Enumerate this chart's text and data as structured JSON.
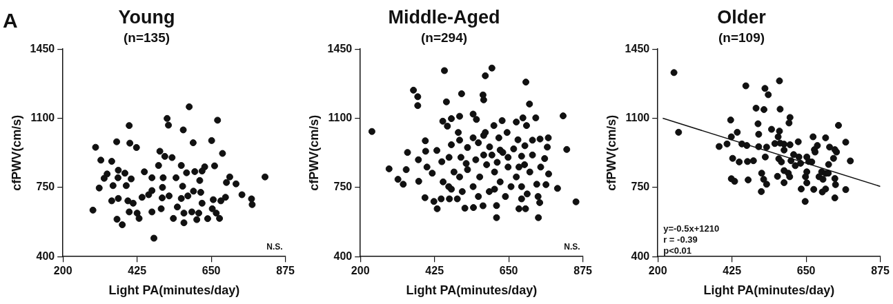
{
  "chart_data": [
    {
      "type": "scatter",
      "title": "Young",
      "subtitle": "(n=135)",
      "xlabel": "Light PA(minutes/day)",
      "ylabel": "cfPWV(cm/s)",
      "xlim": [
        200,
        875
      ],
      "ylim": [
        400,
        1450
      ],
      "xticks": [
        200,
        425,
        650,
        875
      ],
      "yticks": [
        400,
        750,
        1100,
        1450
      ],
      "grid": false,
      "legend": false,
      "marker": "circle",
      "annotations": [
        "A",
        "N.S."
      ],
      "series": [
        {
          "color": "#111111",
          "x": [
            583,
            516,
            520,
            669,
            401,
            565,
            595,
            651,
            363,
            403,
            423,
            299,
            684,
            494,
            509,
            531,
            315,
            348,
            660,
            630,
            490,
            559,
            447,
            368,
            334,
            388,
            325,
            367,
            407,
            470,
            504,
            543,
            575,
            600,
            622,
            615,
            706,
            725,
            696,
            813,
            310,
            352,
            392,
            502,
            563,
            596,
            618,
            348,
            368,
            397,
            413,
            440,
            460,
            470,
            501,
            522,
            559,
            579,
            656,
            679,
            693,
            743,
            772,
            774,
            291,
            401,
            425,
            470,
            498,
            547,
            567,
            591,
            612,
            622,
            653,
            665,
            535,
            567,
            606,
            639,
            675,
            364,
            380,
            431,
            476
          ],
          "values": [
            1158,
            1099,
            1065,
            1090,
            1063,
            1041,
            976,
            987,
            981,
            974,
            952,
            953,
            922,
            933,
            907,
            901,
            888,
            882,
            859,
            854,
            861,
            861,
            829,
            837,
            818,
            822,
            796,
            799,
            793,
            799,
            799,
            799,
            824,
            830,
            833,
            785,
            803,
            768,
            775,
            803,
            747,
            759,
            759,
            750,
            756,
            731,
            725,
            682,
            694,
            682,
            670,
            700,
            713,
            734,
            697,
            707,
            694,
            707,
            688,
            682,
            700,
            713,
            692,
            663,
            635,
            626,
            620,
            626,
            642,
            651,
            620,
            626,
            620,
            670,
            642,
            620,
            593,
            571,
            587,
            592,
            593,
            589,
            561,
            593,
            493
          ]
        }
      ]
    },
    {
      "type": "scatter",
      "title": "Middle-Aged",
      "subtitle": "(n=294)",
      "xlabel": "Light PA(minutes/day)",
      "ylabel": "cfPWV(cm/s)",
      "xlim": [
        200,
        875
      ],
      "ylim": [
        400,
        1450
      ],
      "xticks": [
        200,
        425,
        650,
        875
      ],
      "yticks": [
        400,
        750,
        1100,
        1450
      ],
      "grid": false,
      "legend": false,
      "marker": "circle",
      "annotations": [
        "N.S."
      ],
      "series": [
        {
          "color": "#111111",
          "x": [
            235,
            287,
            361,
            374,
            374,
            455,
            461,
            507,
            579,
            599,
            702,
            572,
            574,
            713,
            815,
            826,
            854,
            613,
            740,
            450,
            464,
            476,
            501,
            542,
            552,
            630,
            673,
            693,
            704,
            732,
            605,
            497,
            579,
            645,
            343,
            314,
            330,
            339,
            376,
            377,
            397,
            398,
            432,
            476,
            396,
            423,
            433,
            445,
            470,
            494,
            517,
            543,
            572,
            613,
            681,
            701,
            744,
            798,
            763,
            771,
            767,
            770,
            745,
            722,
            678,
            699,
            620,
            592,
            402,
            447,
            469,
            505,
            525,
            558,
            599,
            632,
            665,
            689,
            722,
            759,
            418,
            451,
            476,
            501,
            525,
            542,
            562,
            583,
            607,
            624,
            648,
            673,
            689,
            714,
            735,
            747,
            509,
            558,
            591,
            640,
            657,
            706,
            739,
            521,
            574,
            615,
            648,
            698,
            484,
            550,
            624,
            681,
            501,
            542,
            574,
            607,
            689,
            468
          ],
          "values": [
            1033,
            844,
            1242,
            1209,
            1164,
            1341,
            1183,
            1224,
            1315,
            1354,
            1283,
            1218,
            1193,
            1172,
            1112,
            942,
            677,
            597,
            597,
            1085,
            1060,
            1098,
            1110,
            1121,
            1094,
            1088,
            1081,
            1102,
            1063,
            1102,
            1063,
            1028,
            1028,
            1028,
            927,
            791,
            766,
            840,
            890,
            781,
            986,
            933,
            937,
            966,
            698,
            679,
            642,
            692,
            692,
            692,
            645,
            648,
            657,
            658,
            642,
            642,
            673,
            745,
            764,
            818,
            954,
            1001,
            995,
            989,
            991,
            961,
            1001,
            955,
            853,
            880,
            902,
            902,
            952,
            976,
            914,
            927,
            945,
            908,
            914,
            896,
            822,
            778,
            741,
            803,
            840,
            754,
            803,
            865,
            828,
            778,
            853,
            803,
            754,
            828,
            766,
            853,
            729,
            704,
            729,
            704,
            754,
            717,
            704,
            871,
            914,
            877,
            902,
            865,
            828,
            890,
            939,
            853,
            989,
            1001,
            1013,
            741,
            692,
            754
          ]
        }
      ]
    },
    {
      "type": "scatter",
      "title": "Older",
      "subtitle": "(n=109)",
      "xlabel": "Light PA(minutes/day)",
      "ylabel": "cfPWV(cm/s)",
      "xlim": [
        200,
        875
      ],
      "ylim": [
        400,
        1450
      ],
      "xticks": [
        200,
        425,
        650,
        875
      ],
      "yticks": [
        400,
        750,
        1100,
        1450
      ],
      "grid": false,
      "legend": false,
      "marker": "circle",
      "annotations": [
        "y=-0.5x+1210",
        "r = -0.39",
        "p<0.01"
      ],
      "series": [
        {
          "color": "#111111",
          "x": [
            249,
            263,
            386,
            410,
            421,
            423,
            441,
            427,
            447,
            455,
            470,
            467,
            472,
            490,
            423,
            433,
            474,
            498,
            522,
            504,
            506,
            506,
            530,
            526,
            525,
            535,
            515,
            521,
            530,
            514,
            569,
            571,
            601,
            598,
            545,
            569,
            565,
            555,
            571,
            583,
            601,
            583,
            567,
            575,
            563,
            583,
            596,
            600,
            583,
            626,
            612,
            628,
            604,
            617,
            633,
            652,
            658,
            671,
            675,
            667,
            677,
            652,
            648,
            635,
            652,
            673,
            647,
            689,
            697,
            701,
            709,
            718,
            717,
            709,
            684,
            721,
            737,
            733,
            709,
            699,
            739,
            737,
            748,
            770,
            784,
            742,
            770,
            737
          ],
          "values": [
            1331,
            1029,
            957,
            970,
            1091,
            1006,
            1029,
            897,
            879,
            970,
            962,
            1264,
            881,
            885,
            794,
            781,
            788,
            1151,
            1144,
            1072,
            1019,
            956,
            954,
            904,
            1251,
            1219,
            822,
            791,
            766,
            729,
            1289,
            1146,
            1104,
            1076,
            1044,
            1035,
            1006,
            972,
            974,
            969,
            966,
            939,
            895,
            879,
            806,
            835,
            822,
            804,
            774,
            981,
            916,
            904,
            885,
            860,
            872,
            904,
            881,
            1006,
            941,
            879,
            929,
            829,
            804,
            742,
            773,
            740,
            679,
            804,
            829,
            791,
            821,
            866,
            822,
            1001,
            962,
            954,
            941,
            897,
            742,
            727,
            764,
            795,
            1064,
            979,
            884,
            929,
            739,
            697
          ]
        },
        {
          "type": "line",
          "color": "#111111",
          "marker": "none",
          "x": [
            215,
            875
          ],
          "values": [
            1100,
            755
          ]
        }
      ]
    }
  ]
}
